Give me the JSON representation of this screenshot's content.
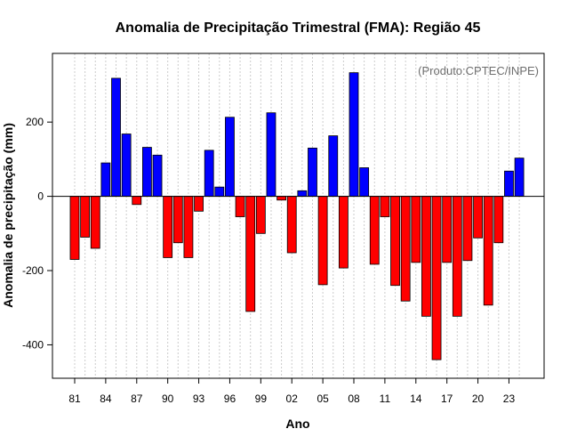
{
  "chart_data": {
    "type": "bar",
    "title": "Anomalia de Precipitação Trimestral (FMA): Região 45",
    "xlabel": "Ano",
    "ylabel": "Anomalia de precipitação (mm)",
    "annotation": "(Produto:CPTEC/INPE)",
    "ylim": [
      -490,
      385
    ],
    "y_ticks": [
      -400,
      -200,
      0,
      200
    ],
    "x_tick_labels": [
      "81",
      "84",
      "87",
      "90",
      "93",
      "96",
      "99",
      "02",
      "05",
      "08",
      "11",
      "14",
      "17",
      "20",
      "23"
    ],
    "x_tick_every": 3,
    "positive_color": "#0000ff",
    "negative_color": "#ff0000",
    "grid": true,
    "years": [
      1981,
      1982,
      1983,
      1984,
      1985,
      1986,
      1987,
      1988,
      1989,
      1990,
      1991,
      1992,
      1993,
      1994,
      1995,
      1996,
      1997,
      1998,
      1999,
      2000,
      2001,
      2002,
      2003,
      2004,
      2005,
      2006,
      2007,
      2008,
      2009,
      2010,
      2011,
      2012,
      2013,
      2014,
      2015,
      2016,
      2017,
      2018,
      2019,
      2020,
      2021,
      2022,
      2023,
      2024
    ],
    "values": [
      -170,
      -110,
      -140,
      90,
      318,
      168,
      -22,
      132,
      111,
      -165,
      -125,
      -165,
      -40,
      124,
      25,
      213,
      -55,
      -310,
      -100,
      225,
      -10,
      -152,
      15,
      130,
      -238,
      163,
      -193,
      333,
      77,
      -183,
      -55,
      -240,
      -282,
      -178,
      -323,
      -440,
      -178,
      -323,
      -173,
      -112,
      -293,
      -125,
      68,
      103
    ]
  }
}
